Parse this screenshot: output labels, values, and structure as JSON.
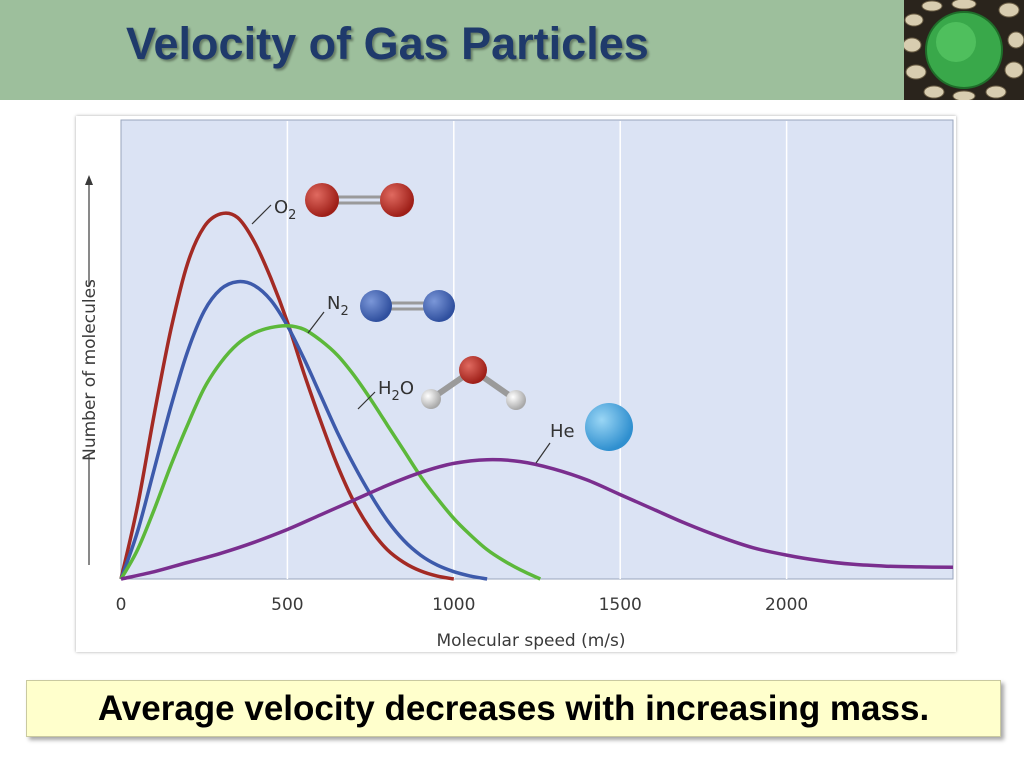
{
  "slide": {
    "title": "Velocity of Gas Particles",
    "caption": "Average velocity decreases with increasing mass.",
    "title_image_icon": "green-cell-particle-icon"
  },
  "colors": {
    "title_bar": "#9dbf9c",
    "title_text": "#1f3a6b",
    "plot_background": "#dbe3f4",
    "caption_background": "#ffffcc",
    "O2": "#a32a24",
    "N2": "#3d5aab",
    "H2O": "#5cb83a",
    "He": "#7a2e8e"
  },
  "chart_data": {
    "type": "line",
    "title": "",
    "xlabel": "Molecular speed (m/s)",
    "ylabel": "Number of molecules",
    "xlim": [
      0,
      2500
    ],
    "ylim": [
      0,
      1
    ],
    "x_ticks": [
      "0",
      "500",
      "1000",
      "1500",
      "2000"
    ],
    "y_ticks": [],
    "grid": "vertical at x ticks",
    "legend": "none (labels next to curves)",
    "series": [
      {
        "name": "O2",
        "label_main": "O",
        "label_sub": "2",
        "label_after": "",
        "molecule_icon": "o2-molecule-icon",
        "points": [
          [
            0,
            0
          ],
          [
            50,
            0.2
          ],
          [
            100,
            0.45
          ],
          [
            150,
            0.68
          ],
          [
            200,
            0.86
          ],
          [
            250,
            0.96
          ],
          [
            300,
            0.995
          ],
          [
            350,
            0.985
          ],
          [
            400,
            0.92
          ],
          [
            450,
            0.82
          ],
          [
            500,
            0.7
          ],
          [
            550,
            0.56
          ],
          [
            600,
            0.43
          ],
          [
            650,
            0.31
          ],
          [
            700,
            0.21
          ],
          [
            750,
            0.135
          ],
          [
            800,
            0.08
          ],
          [
            850,
            0.045
          ],
          [
            900,
            0.022
          ],
          [
            950,
            0.008
          ],
          [
            1000,
            0
          ]
        ]
      },
      {
        "name": "N2",
        "label_main": "N",
        "label_sub": "2",
        "label_after": "",
        "molecule_icon": "n2-molecule-icon",
        "points": [
          [
            0,
            0
          ],
          [
            50,
            0.13
          ],
          [
            100,
            0.3
          ],
          [
            150,
            0.47
          ],
          [
            200,
            0.62
          ],
          [
            250,
            0.73
          ],
          [
            300,
            0.79
          ],
          [
            350,
            0.81
          ],
          [
            400,
            0.8
          ],
          [
            450,
            0.76
          ],
          [
            500,
            0.69
          ],
          [
            550,
            0.6
          ],
          [
            600,
            0.5
          ],
          [
            650,
            0.4
          ],
          [
            700,
            0.31
          ],
          [
            750,
            0.23
          ],
          [
            800,
            0.16
          ],
          [
            850,
            0.105
          ],
          [
            900,
            0.065
          ],
          [
            950,
            0.038
          ],
          [
            1000,
            0.02
          ],
          [
            1050,
            0.008
          ],
          [
            1100,
            0
          ]
        ]
      },
      {
        "name": "H2O",
        "label_main": "H",
        "label_sub": "2",
        "label_after": "O",
        "molecule_icon": "h2o-molecule-icon",
        "points": [
          [
            0,
            0
          ],
          [
            50,
            0.08
          ],
          [
            100,
            0.19
          ],
          [
            150,
            0.31
          ],
          [
            200,
            0.42
          ],
          [
            250,
            0.52
          ],
          [
            300,
            0.59
          ],
          [
            350,
            0.64
          ],
          [
            400,
            0.67
          ],
          [
            450,
            0.685
          ],
          [
            500,
            0.69
          ],
          [
            550,
            0.68
          ],
          [
            600,
            0.65
          ],
          [
            650,
            0.61
          ],
          [
            700,
            0.555
          ],
          [
            750,
            0.49
          ],
          [
            800,
            0.42
          ],
          [
            850,
            0.35
          ],
          [
            900,
            0.28
          ],
          [
            950,
            0.22
          ],
          [
            1000,
            0.165
          ],
          [
            1050,
            0.12
          ],
          [
            1100,
            0.08
          ],
          [
            1150,
            0.05
          ],
          [
            1200,
            0.025
          ],
          [
            1260,
            0
          ]
        ]
      },
      {
        "name": "He",
        "label_main": "He",
        "label_sub": "",
        "label_after": "",
        "molecule_icon": "he-atom-icon",
        "points": [
          [
            0,
            0
          ],
          [
            100,
            0.02
          ],
          [
            200,
            0.045
          ],
          [
            300,
            0.07
          ],
          [
            400,
            0.1
          ],
          [
            500,
            0.135
          ],
          [
            600,
            0.175
          ],
          [
            700,
            0.215
          ],
          [
            800,
            0.255
          ],
          [
            900,
            0.29
          ],
          [
            1000,
            0.315
          ],
          [
            1100,
            0.325
          ],
          [
            1200,
            0.32
          ],
          [
            1300,
            0.3
          ],
          [
            1400,
            0.27
          ],
          [
            1500,
            0.23
          ],
          [
            1600,
            0.19
          ],
          [
            1700,
            0.15
          ],
          [
            1800,
            0.115
          ],
          [
            1900,
            0.085
          ],
          [
            2000,
            0.065
          ],
          [
            2100,
            0.05
          ],
          [
            2200,
            0.04
          ],
          [
            2300,
            0.035
          ],
          [
            2400,
            0.033
          ],
          [
            2500,
            0.032
          ]
        ]
      }
    ]
  }
}
